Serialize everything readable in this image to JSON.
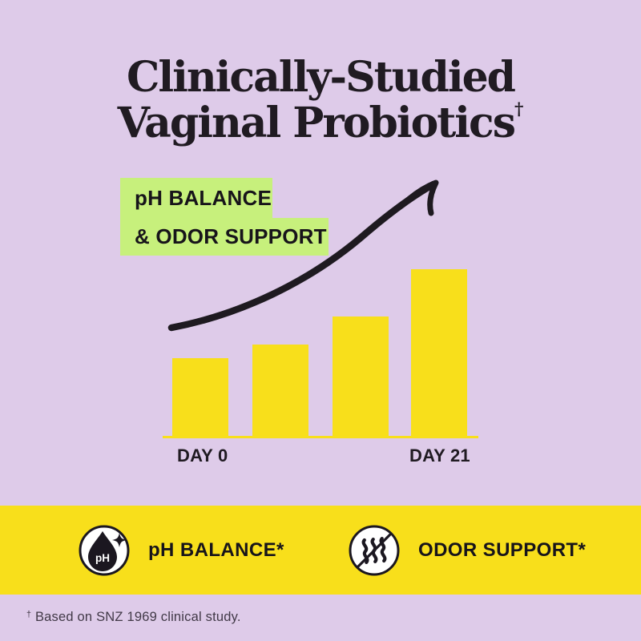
{
  "colors": {
    "bg": "#DECBE9",
    "yellow": "#F8DF1B",
    "green": "#C7F07C",
    "ink": "#201B22",
    "ink-soft": "#413947"
  },
  "title": {
    "line1": "Clinically-Studied",
    "line2": "Vaginal Probiotics",
    "dagger": "†"
  },
  "highlight_badge": {
    "line1": "pH BALANCE",
    "line2": "& ODOR SUPPORT"
  },
  "chart_data": {
    "type": "bar",
    "description": "Four yellow bars rising left to right showing improvement over a 21-day period, with a hand-drawn black curved arrow sweeping upward above the bars",
    "categories": [
      "DAY 0",
      "",
      "",
      "DAY 21"
    ],
    "values_pct_of_max": [
      47,
      55,
      72,
      100
    ],
    "x_axis_labels_shown": [
      "DAY 0",
      "DAY 21"
    ],
    "y_axis": "none shown (relative improvement)",
    "bar_color": "#F8DF1B",
    "axis_line_color": "#F8DF1B",
    "annotations": [
      "upward curved trend arrow",
      "pH BALANCE & ODOR SUPPORT"
    ]
  },
  "features": [
    {
      "icon": "ph-droplet-icon",
      "icon_text": "pH",
      "label": "pH BALANCE*"
    },
    {
      "icon": "no-odor-icon",
      "label": "ODOR SUPPORT*"
    }
  ],
  "footnote": {
    "dagger": "†",
    "text": "Based on SNZ 1969 clinical study."
  }
}
